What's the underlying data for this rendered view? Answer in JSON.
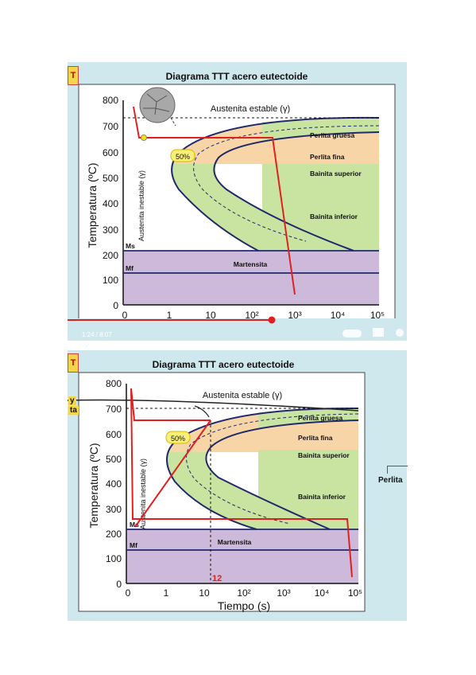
{
  "title": "Diagrama TTT acero eutectoide",
  "axes": {
    "ylabel": "Temperatura (ºC)",
    "xlabel": "Tiempo (s)",
    "yticks": [
      "800",
      "700",
      "600",
      "500",
      "400",
      "300",
      "200",
      "100",
      "0"
    ],
    "xticks": [
      "0",
      "1",
      "10",
      "10²",
      "10³",
      "10⁴",
      "10⁵"
    ]
  },
  "regions": {
    "austenita_estable": "Austenita estable (γ)",
    "austenita_inestable": "Austenita inestable (γ)",
    "perlita_gruesa": "Perlita gruesa",
    "perlita_fina": "Perlita fina",
    "bainita_superior": "Bainita superior",
    "bainita_inferior": "Bainita inferior",
    "martensita": "Martensita",
    "ms": "Ms",
    "mf": "Mf",
    "fifty": "50%"
  },
  "video": {
    "time": "1:24 / 8:07",
    "tab": "T"
  },
  "second": {
    "time_marker": "12",
    "side_left_1": "y",
    "side_left_2": "ta",
    "side_right": "Perlita"
  },
  "colors": {
    "panel_bg": "#cfe8ee",
    "austenite": "#ffffff",
    "pearlite": "#f8d5a7",
    "bainite": "#c9e4a0",
    "martensite": "#cdb9d9",
    "curve": "#1f2a6b",
    "path": "#e02020"
  }
}
